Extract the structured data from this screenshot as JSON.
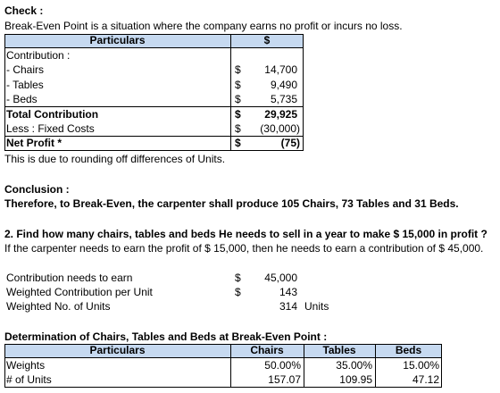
{
  "check": {
    "title": "Check :",
    "text": "Break-Even Point is a situation where the company earns no profit or incurs no loss."
  },
  "table1": {
    "header": [
      "Particulars",
      "$"
    ],
    "rows": [
      {
        "label": "Contribution :"
      },
      {
        "label": "- Chairs",
        "currency": "$",
        "amount": "14,700"
      },
      {
        "label": "- Tables",
        "currency": "$",
        "amount": "9,490"
      },
      {
        "label": "- Beds",
        "currency": "$",
        "amount": "5,735"
      },
      {
        "label": "Total Contribution",
        "currency": "$",
        "amount": "29,925"
      },
      {
        "label": "Less : Fixed Costs",
        "currency": "$",
        "amount": "(30,000)"
      },
      {
        "label": "Net Profit *",
        "currency": "$",
        "amount": "(75)"
      }
    ],
    "note": "This is due to rounding off differences of Units."
  },
  "conclusion": {
    "title": "Conclusion :",
    "text": "Therefore, to Break-Even, the carpenter shall produce 105 Chairs, 73 Tables and 31 Beds."
  },
  "question": {
    "title": "2. Find how many chairs, tables and beds He needs to sell in a year to make $ 15,000 in profit ?",
    "text": "If the carpenter needs to earn the profit of $ 15,000, then he needs to earn a contribution of $ 45,000."
  },
  "calc": [
    {
      "label": "Contribution needs to earn",
      "currency": "$",
      "amount": "45,000"
    },
    {
      "label": "Weighted Contribution per Unit",
      "currency": "$",
      "amount": "143"
    },
    {
      "label": "Weighted No. of Units",
      "amount": "314",
      "unit": "Units"
    }
  ],
  "table2": {
    "title": "Determination of Chairs, Tables and Beds at Break-Even Point :",
    "header": [
      "Particulars",
      "Chairs",
      "Tables",
      "Beds"
    ],
    "rows": [
      [
        "Weights",
        "50.00%",
        "35.00%",
        "15.00%"
      ],
      [
        "# of Units",
        "157.07",
        "109.95",
        "47.12"
      ]
    ]
  }
}
